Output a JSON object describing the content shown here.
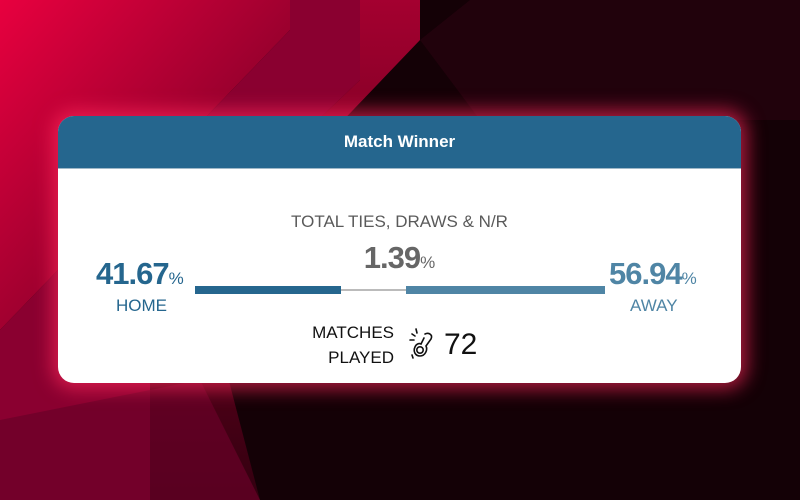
{
  "card": {
    "title": "Match Winner",
    "ties_label": "TOTAL TIES, DRAWS & N/R",
    "ties_value": "1.39",
    "home_value": "41.67",
    "home_label": "HOME",
    "away_value": "56.94",
    "away_label": "AWAY",
    "percent_sign": "%",
    "matches_label_line1": "MATCHES",
    "matches_label_line2": "PLAYED",
    "matches_value": "72",
    "matches_icon": "cricket-ball-hand-icon",
    "shares": {
      "home": 41.67,
      "ties": 1.39,
      "away": 56.94
    }
  },
  "colors": {
    "header": "#25668e",
    "home": "#25668e",
    "away": "#4f85a5",
    "tie_line": "#bbbbbb",
    "glow": "#ff285a"
  }
}
